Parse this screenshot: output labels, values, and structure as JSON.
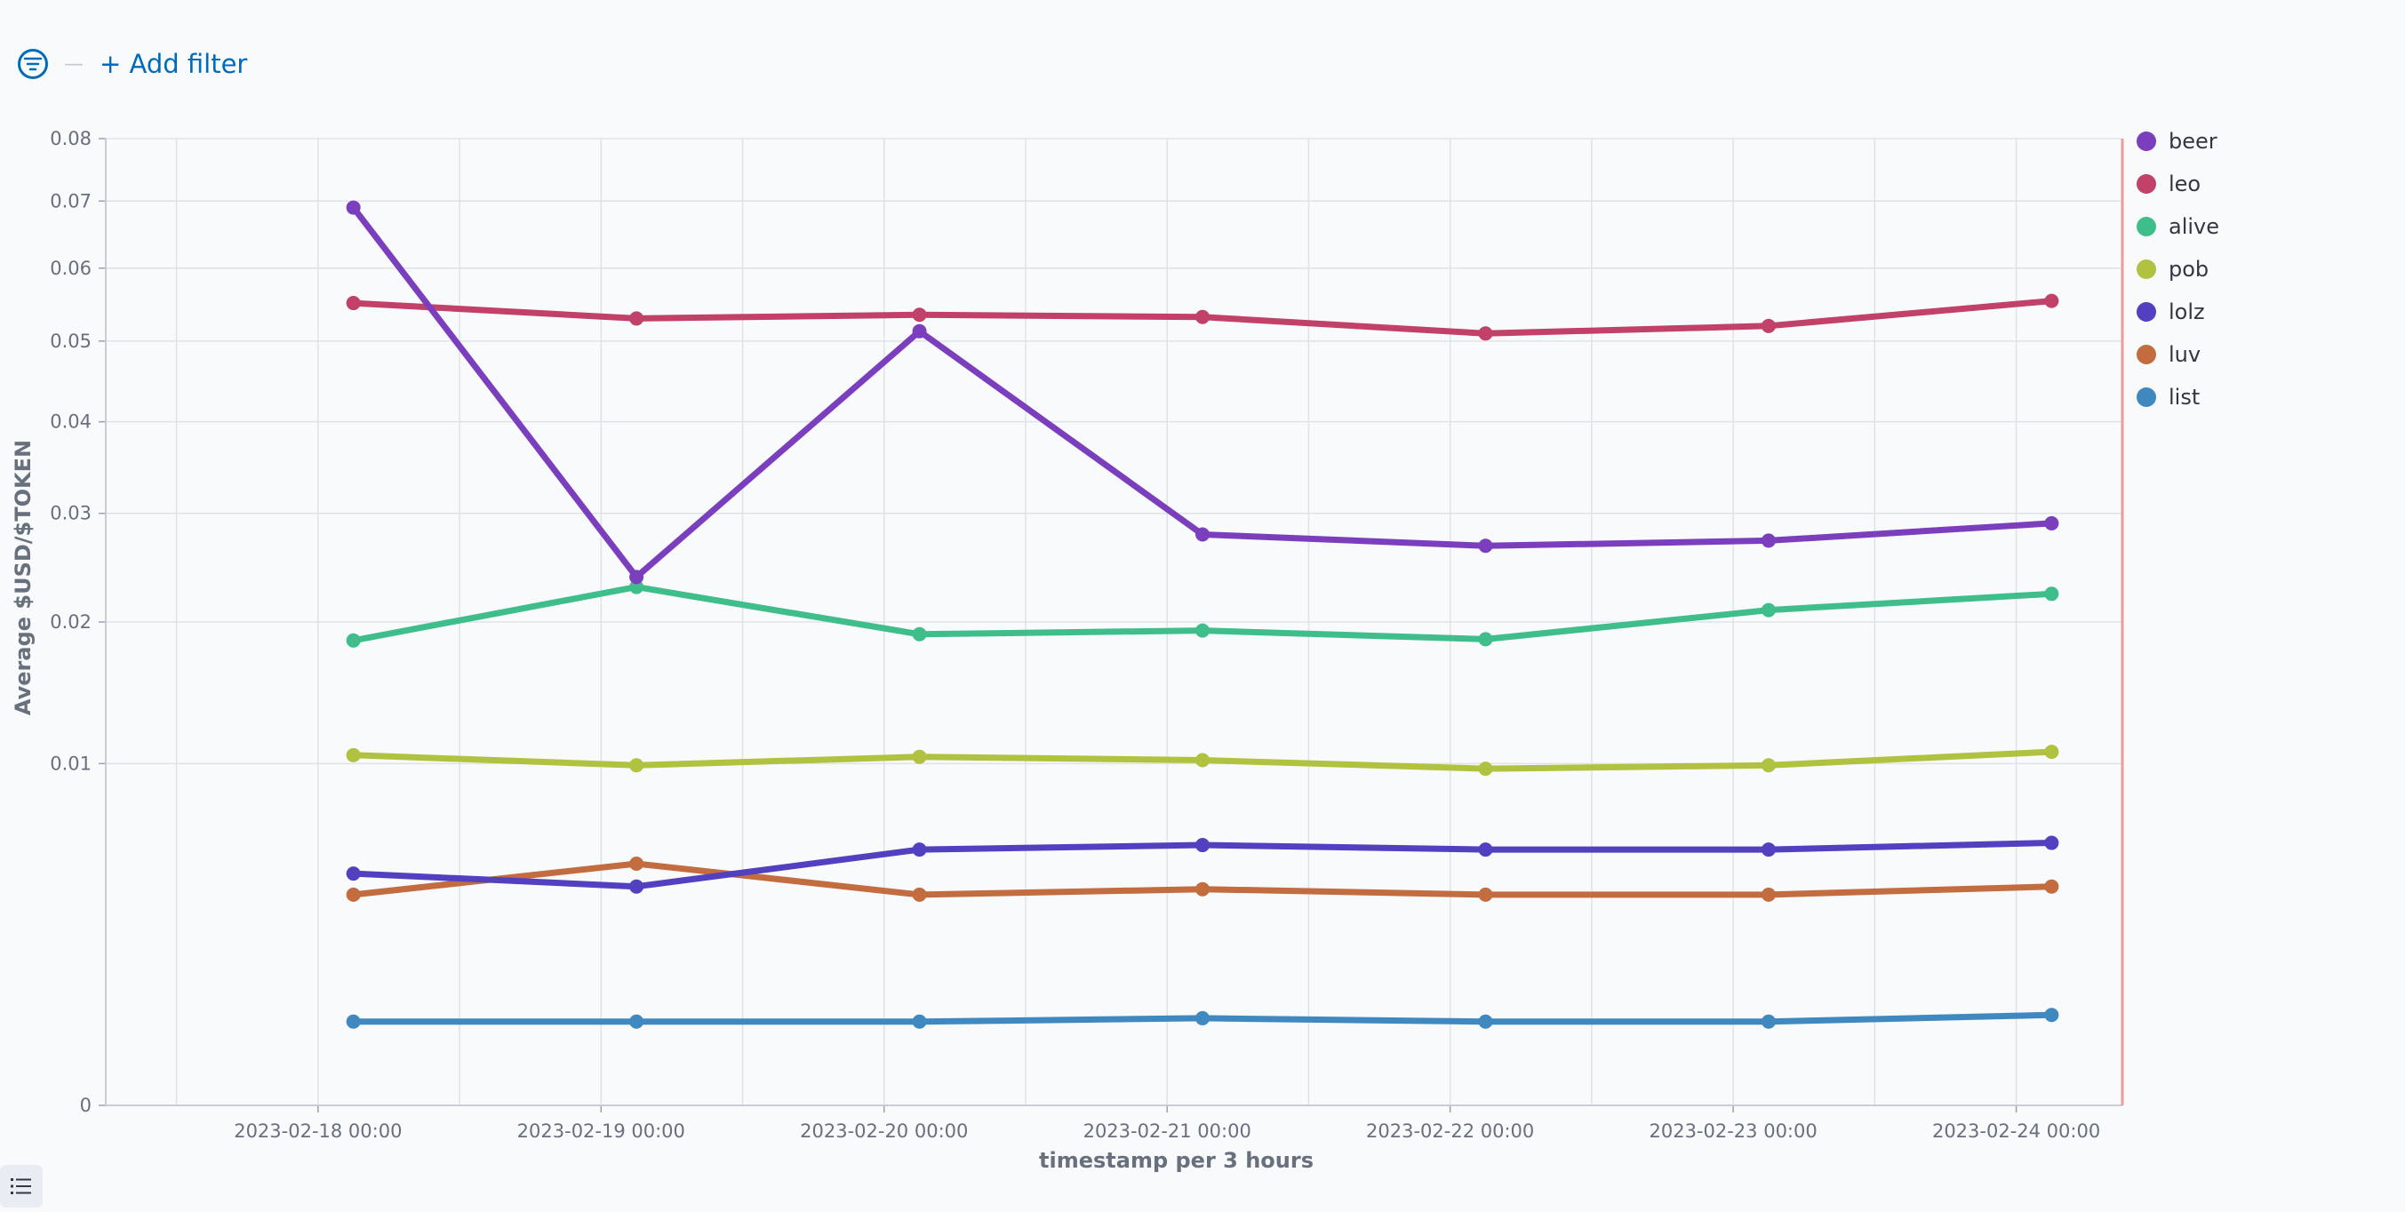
{
  "toolbar": {
    "add_filter_label": "+ Add filter"
  },
  "chart_data": {
    "type": "line",
    "title": "",
    "xlabel": "timestamp per 3 hours",
    "ylabel": "Average $USD/$TOKEN",
    "y_scale": "sqrt",
    "ylim": [
      0,
      0.08
    ],
    "y_ticks": [
      {
        "value": 0,
        "label": "0"
      },
      {
        "value": 0.01,
        "label": "0.01"
      },
      {
        "value": 0.02,
        "label": "0.02"
      },
      {
        "value": 0.03,
        "label": "0.03"
      },
      {
        "value": 0.04,
        "label": "0.04"
      },
      {
        "value": 0.05,
        "label": "0.05"
      },
      {
        "value": 0.06,
        "label": "0.06"
      },
      {
        "value": 0.07,
        "label": "0.07"
      },
      {
        "value": 0.08,
        "label": "0.08"
      }
    ],
    "x_tick_labels": [
      "2023-02-18 00:00",
      "2023-02-19 00:00",
      "2023-02-20 00:00",
      "2023-02-21 00:00",
      "2023-02-22 00:00",
      "2023-02-23 00:00",
      "2023-02-24 00:00"
    ],
    "x": [
      "2023-02-18 03:00",
      "2023-02-19 03:00",
      "2023-02-20 03:00",
      "2023-02-21 03:00",
      "2023-02-22 03:00",
      "2023-02-23 03:00",
      "2023-02-24 03:00"
    ],
    "xlim": [
      "2023-02-17 06:00",
      "2023-02-24 09:00"
    ],
    "grid": true,
    "legend_position": "right",
    "series": [
      {
        "name": "beer",
        "color": "#7b3fbe",
        "values": [
          0.069,
          0.0239,
          0.0513,
          0.0279,
          0.0268,
          0.0273,
          0.029
        ]
      },
      {
        "name": "leo",
        "color": "#c14168",
        "values": [
          0.0551,
          0.053,
          0.0535,
          0.0532,
          0.051,
          0.052,
          0.0554
        ]
      },
      {
        "name": "alive",
        "color": "#3fbe8c",
        "values": [
          0.0185,
          0.023,
          0.019,
          0.0193,
          0.0186,
          0.021,
          0.0224
        ]
      },
      {
        "name": "pob",
        "color": "#b0c240",
        "values": [
          0.0105,
          0.0099,
          0.0104,
          0.0102,
          0.0097,
          0.0099,
          0.0107
        ]
      },
      {
        "name": "lolz",
        "color": "#5140c0",
        "values": [
          0.0046,
          0.0041,
          0.0056,
          0.0058,
          0.0056,
          0.0056,
          0.0059
        ]
      },
      {
        "name": "luv",
        "color": "#c26c40",
        "values": [
          0.0038,
          0.005,
          0.0038,
          0.004,
          0.0038,
          0.0038,
          0.0041
        ]
      },
      {
        "name": "list",
        "color": "#4089c0",
        "values": [
          0.0006,
          0.0006,
          0.0006,
          0.00065,
          0.0006,
          0.0006,
          0.0007
        ]
      }
    ]
  }
}
